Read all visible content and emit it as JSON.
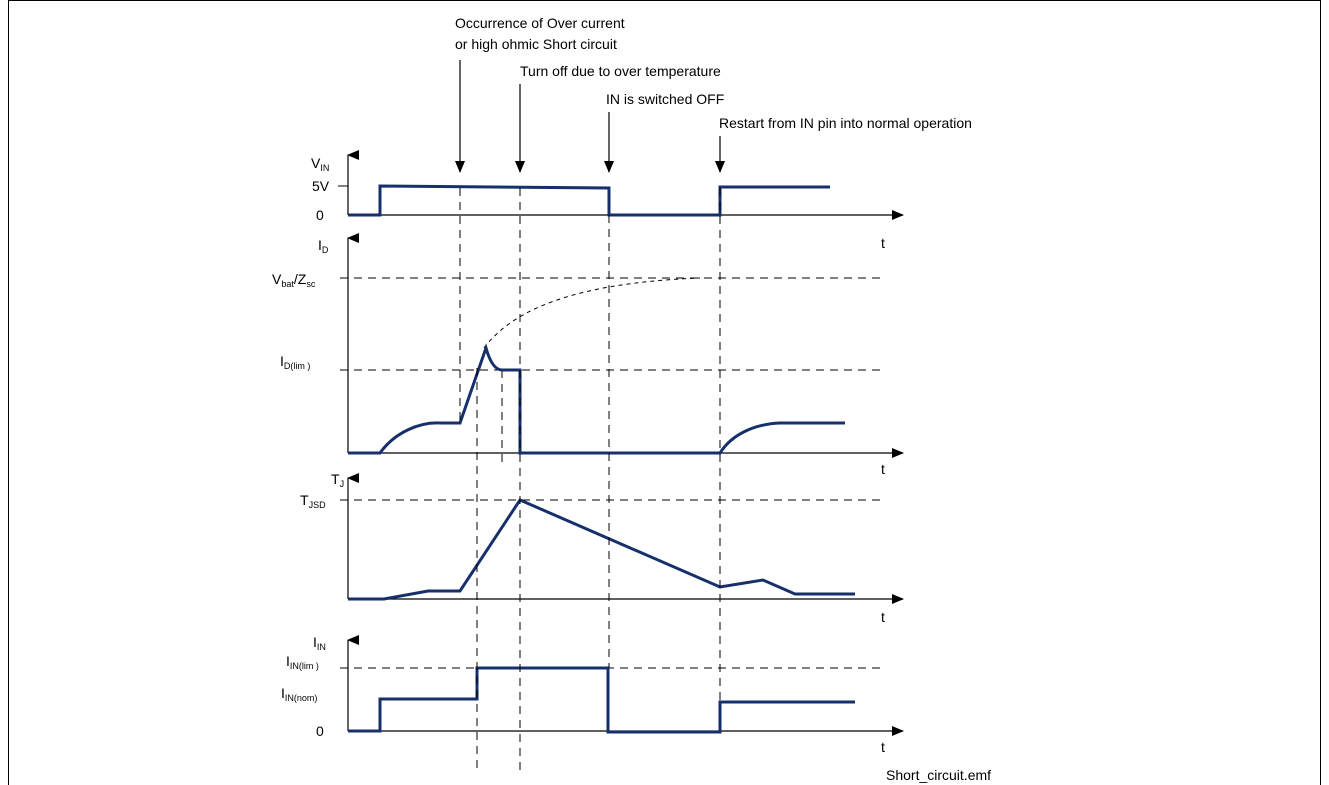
{
  "annotations": {
    "overcurrent_line1": "Occurrence of Over current",
    "overcurrent_line2": "or high ohmic Short circuit",
    "overtemp": "Turn off due to over temperature",
    "in_off": "IN is switched OFF",
    "restart": "Restart from IN pin into normal operation"
  },
  "vin_panel": {
    "axis_main": "V",
    "axis_sub": "IN",
    "tick_high": "5V",
    "tick_zero": "0",
    "t_label": "t"
  },
  "id_panel": {
    "axis_main": "I",
    "axis_sub": "D",
    "vbat_main": "V",
    "vbat_sub": "bat",
    "vbat_slash": "/Z",
    "vbat_sub2": "sc",
    "idlim_main": "I",
    "idlim_sub": "D(lim )",
    "t_label": "t"
  },
  "tj_panel": {
    "axis_main": "T",
    "axis_sub": "J",
    "tjsd_main": "T",
    "tjsd_sub": "JSD",
    "t_label": "t"
  },
  "iin_panel": {
    "axis_main": "I",
    "axis_sub": "IN",
    "lim_main": "I",
    "lim_sub": "IN(lim )",
    "nom_main": "I",
    "nom_sub": "IN(nom)",
    "tick_zero": "0",
    "t_label": "t"
  },
  "caption": "Short_circuit.emf",
  "colors": {
    "waveform": "#17306b",
    "axis": "#000000"
  }
}
